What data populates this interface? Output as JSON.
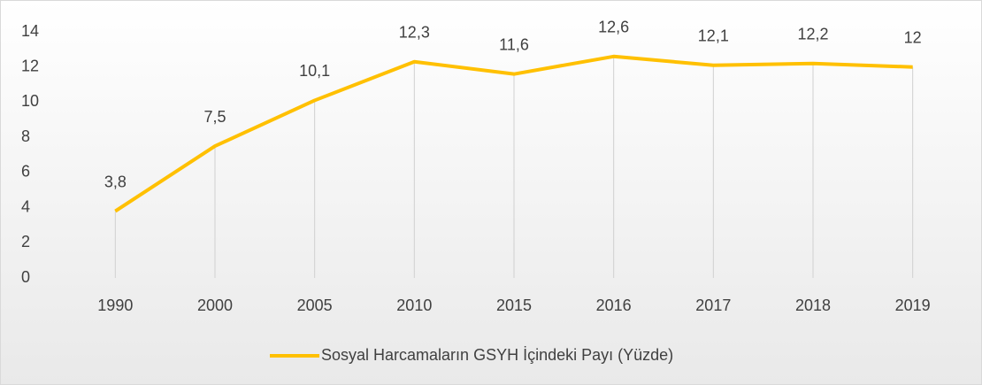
{
  "chart_data": {
    "type": "line",
    "categories": [
      "1990",
      "2000",
      "2005",
      "2010",
      "2015",
      "2016",
      "2017",
      "2018",
      "2019"
    ],
    "series": [
      {
        "name": "Sosyal Harcamaların GSYH İçindeki Payı (Yüzde)",
        "color": "#ffc000",
        "values": [
          3.8,
          7.5,
          10.1,
          12.3,
          11.6,
          12.6,
          12.1,
          12.2,
          12
        ],
        "value_labels": [
          "3,8",
          "7,5",
          "10,1",
          "12,3",
          "11,6",
          "12,6",
          "12,1",
          "12,2",
          "12"
        ]
      }
    ],
    "ylim": [
      0,
      14
    ],
    "yticks": [
      0,
      2,
      4,
      6,
      8,
      10,
      12,
      14
    ],
    "legend": "bottom"
  }
}
